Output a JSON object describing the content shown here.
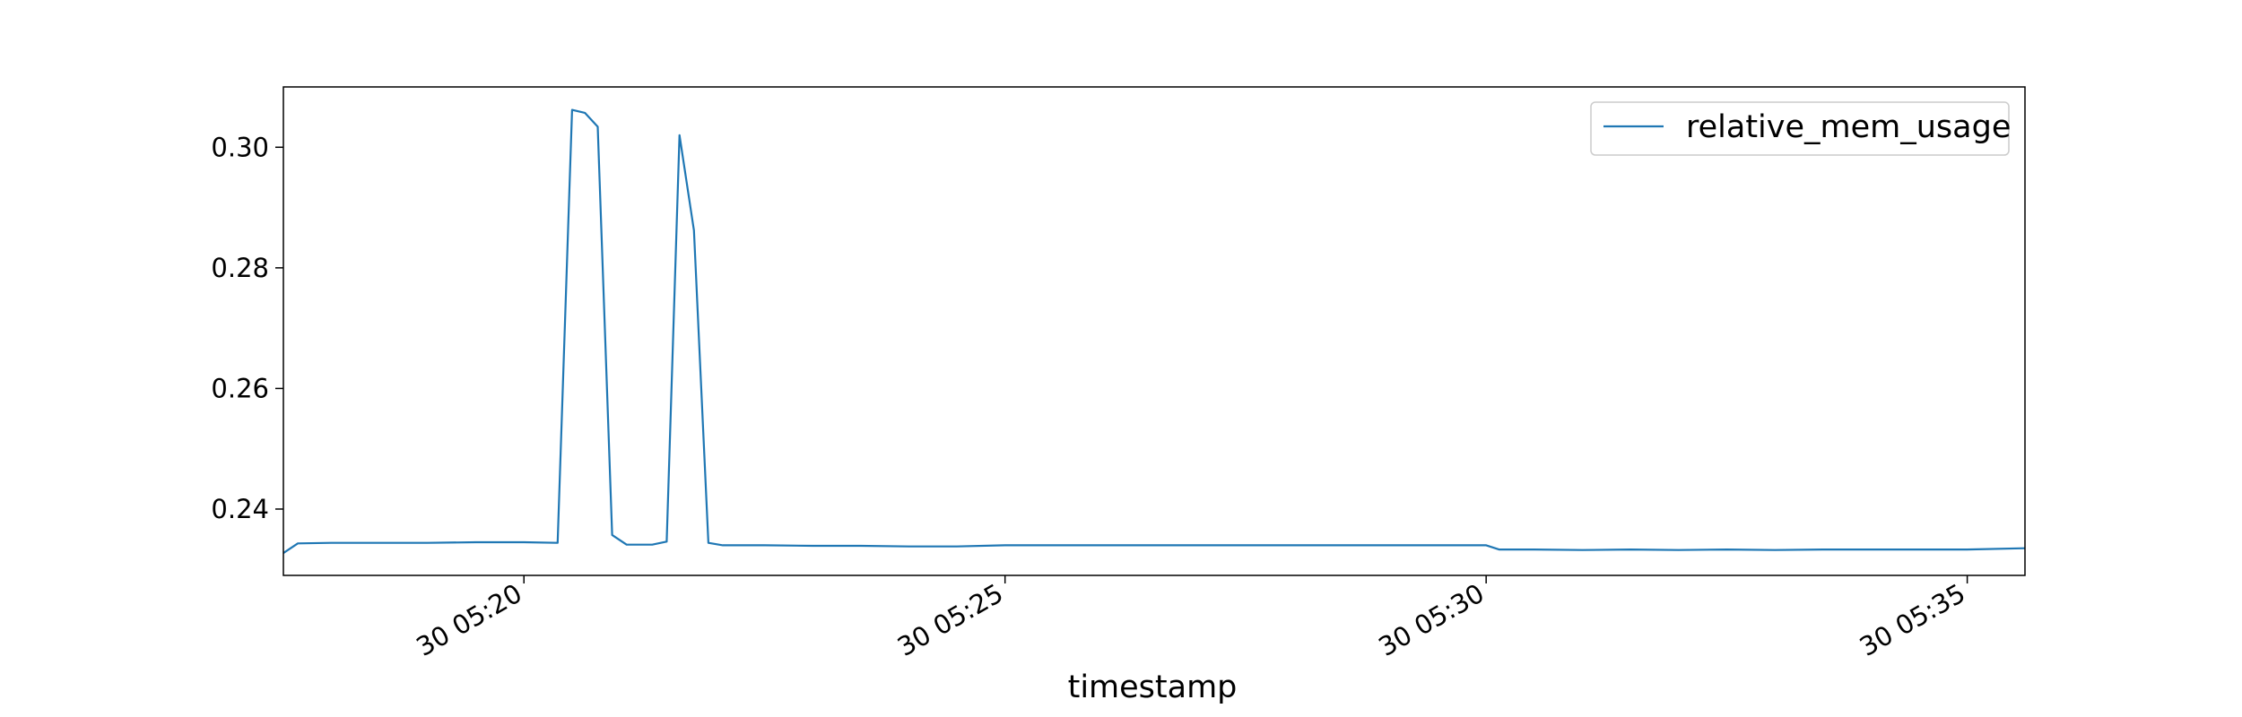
{
  "chart_data": {
    "type": "line",
    "title": "",
    "xlabel": "timestamp",
    "ylabel": "",
    "x_axis_kind": "time",
    "xlim": [
      "30 05:17:30",
      "30 05:35:36"
    ],
    "ylim": [
      0.229,
      0.31
    ],
    "x_ticks": [
      {
        "value": "30 05:20:00",
        "label": "30 05:20"
      },
      {
        "value": "30 05:25:00",
        "label": "30 05:25"
      },
      {
        "value": "30 05:30:00",
        "label": "30 05:30"
      },
      {
        "value": "30 05:35:00",
        "label": "30 05:35"
      }
    ],
    "y_ticks": [
      {
        "value": 0.24,
        "label": "0.24"
      },
      {
        "value": 0.26,
        "label": "0.26"
      },
      {
        "value": 0.28,
        "label": "0.28"
      },
      {
        "value": 0.3,
        "label": "0.30"
      }
    ],
    "grid": false,
    "legend": {
      "position": "top-right",
      "entries": [
        "relative_mem_usage"
      ]
    },
    "series": [
      {
        "name": "relative_mem_usage",
        "color": "#1f77b4",
        "points": [
          [
            "30 05:17:30",
            0.2327
          ],
          [
            "30 05:17:39",
            0.2343
          ],
          [
            "30 05:18:00",
            0.2344
          ],
          [
            "30 05:18:30",
            0.2344
          ],
          [
            "30 05:19:00",
            0.2344
          ],
          [
            "30 05:19:30",
            0.2345
          ],
          [
            "30 05:20:00",
            0.2345
          ],
          [
            "30 05:20:21",
            0.2344
          ],
          [
            "30 05:20:30",
            0.3062
          ],
          [
            "30 05:20:38",
            0.3057
          ],
          [
            "30 05:20:46",
            0.3034
          ],
          [
            "30 05:20:55",
            0.2357
          ],
          [
            "30 05:21:04",
            0.2341
          ],
          [
            "30 05:21:20",
            0.2341
          ],
          [
            "30 05:21:29",
            0.2346
          ],
          [
            "30 05:21:37",
            0.302
          ],
          [
            "30 05:21:46",
            0.2862
          ],
          [
            "30 05:21:55",
            0.2344
          ],
          [
            "30 05:22:04",
            0.234
          ],
          [
            "30 05:22:30",
            0.234
          ],
          [
            "30 05:23:00",
            0.2339
          ],
          [
            "30 05:23:30",
            0.2339
          ],
          [
            "30 05:24:00",
            0.2338
          ],
          [
            "30 05:24:30",
            0.2338
          ],
          [
            "30 05:25:00",
            0.234
          ],
          [
            "30 05:25:30",
            0.234
          ],
          [
            "30 05:26:00",
            0.234
          ],
          [
            "30 05:26:30",
            0.234
          ],
          [
            "30 05:27:00",
            0.234
          ],
          [
            "30 05:27:30",
            0.234
          ],
          [
            "30 05:28:00",
            0.234
          ],
          [
            "30 05:28:30",
            0.234
          ],
          [
            "30 05:29:00",
            0.234
          ],
          [
            "30 05:29:30",
            0.234
          ],
          [
            "30 05:30:00",
            0.234
          ],
          [
            "30 05:30:08",
            0.2333
          ],
          [
            "30 05:30:30",
            0.2333
          ],
          [
            "30 05:31:00",
            0.2332
          ],
          [
            "30 05:31:30",
            0.2333
          ],
          [
            "30 05:32:00",
            0.2332
          ],
          [
            "30 05:32:30",
            0.2333
          ],
          [
            "30 05:33:00",
            0.2332
          ],
          [
            "30 05:33:30",
            0.2333
          ],
          [
            "30 05:34:00",
            0.2333
          ],
          [
            "30 05:34:30",
            0.2333
          ],
          [
            "30 05:35:00",
            0.2333
          ],
          [
            "30 05:35:36",
            0.2335
          ]
        ]
      }
    ]
  }
}
